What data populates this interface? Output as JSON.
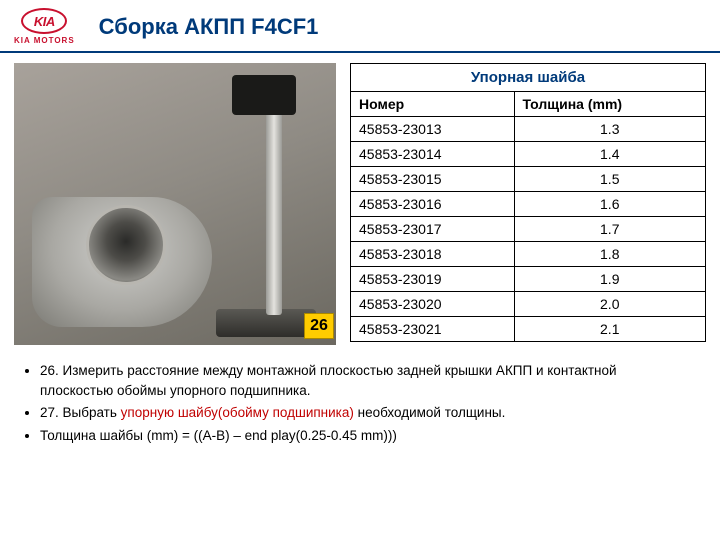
{
  "logo": {
    "brand": "KIA",
    "sub": "KIA MOTORS"
  },
  "title": "Сборка АКПП F4CF1",
  "badge": "26",
  "table": {
    "caption": "Упорная шайба",
    "columns": [
      "Номер",
      "Толщина (mm)"
    ],
    "rows": [
      [
        "45853-23013",
        "1.3"
      ],
      [
        "45853-23014",
        "1.4"
      ],
      [
        "45853-23015",
        "1.5"
      ],
      [
        "45853-23016",
        "1.6"
      ],
      [
        "45853-23017",
        "1.7"
      ],
      [
        "45853-23018",
        "1.8"
      ],
      [
        "45853-23019",
        "1.9"
      ],
      [
        "45853-23020",
        "2.0"
      ],
      [
        "45853-23021",
        "2.1"
      ]
    ]
  },
  "bullets": {
    "b1": "26. Измерить расстояние между монтажной плоскостью задней крышки АКПП и контактной плоскостью обоймы упорного подшипника.",
    "b2a": "27. Выбрать ",
    "b2hl": "упорную шайбу(обойму подшипника)",
    "b2b": " необходимой толщины.",
    "b3": "Толщина шайбы (mm) = ((A-B) – end play(0.25-0.45 mm)))"
  }
}
